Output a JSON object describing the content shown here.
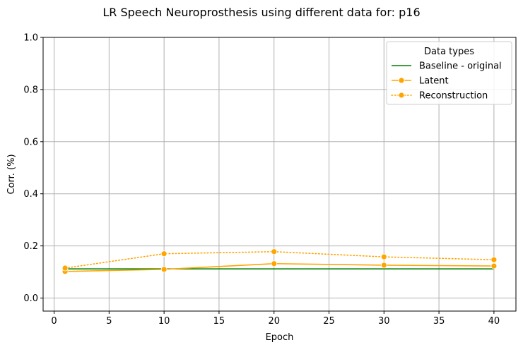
{
  "chart_data": {
    "type": "line",
    "title": "LR Speech Neuroprosthesis using different data for: p16",
    "xlabel": "Epoch",
    "ylabel": "Corr. (%)",
    "xlim": [
      -1,
      42
    ],
    "ylim": [
      -0.05,
      1.0
    ],
    "xticks": [
      0,
      5,
      10,
      15,
      20,
      25,
      30,
      35,
      40
    ],
    "yticks": [
      0.0,
      0.2,
      0.4,
      0.6,
      0.8,
      1.0
    ],
    "grid": true,
    "legend": {
      "title": "Data types",
      "placement": "top-right"
    },
    "series": [
      {
        "name": "Baseline - original",
        "x": [
          1,
          10,
          20,
          30,
          40
        ],
        "values": [
          0.112,
          0.112,
          0.112,
          0.112,
          0.112
        ],
        "color": "#008000",
        "style": "solid",
        "marker": false
      },
      {
        "name": "Latent",
        "x": [
          1,
          10,
          20,
          30,
          40
        ],
        "values": [
          0.102,
          0.11,
          0.132,
          0.126,
          0.123
        ],
        "color": "#FFA500",
        "style": "solid",
        "marker": true
      },
      {
        "name": "Reconstruction",
        "x": [
          1,
          10,
          20,
          30,
          40
        ],
        "values": [
          0.115,
          0.17,
          0.178,
          0.158,
          0.147
        ],
        "color": "#FFA500",
        "style": "dotted",
        "marker": true
      }
    ]
  }
}
